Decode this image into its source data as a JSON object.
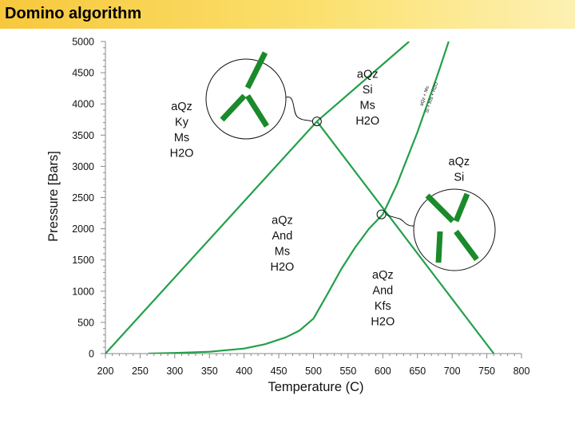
{
  "header": {
    "title": "Domino algorithm"
  },
  "chart_data": {
    "type": "line",
    "xlabel": "Temperature (C)",
    "ylabel": "Pressure [Bars]",
    "xlim": [
      200,
      800
    ],
    "ylim": [
      0,
      5000
    ],
    "xticks": [
      200,
      250,
      300,
      350,
      400,
      450,
      500,
      550,
      600,
      650,
      700,
      750,
      800
    ],
    "yticks": [
      0,
      500,
      1000,
      1500,
      2000,
      2500,
      3000,
      3500,
      4000,
      4500,
      5000
    ],
    "grid": false,
    "colors": {
      "line": "#22a04a",
      "domino": "#1a8a2a",
      "circle": "#000000"
    },
    "series": [
      {
        "points": [
          [
            200,
            0
          ],
          [
            505,
            3720
          ],
          [
            638,
            5000
          ]
        ]
      },
      {
        "points": [
          [
            505,
            3720
          ],
          [
            760,
            0
          ]
        ]
      },
      {
        "points": [
          [
            262,
            0
          ],
          [
            300,
            10
          ],
          [
            350,
            30
          ],
          [
            400,
            80
          ],
          [
            430,
            150
          ],
          [
            460,
            260
          ],
          [
            480,
            370
          ],
          [
            500,
            560
          ],
          [
            520,
            950
          ],
          [
            540,
            1350
          ],
          [
            560,
            1700
          ],
          [
            580,
            2000
          ],
          [
            600,
            2230
          ],
          [
            620,
            2700
          ],
          [
            650,
            3550
          ],
          [
            680,
            4500
          ],
          [
            695,
            5000
          ]
        ]
      }
    ],
    "invariant_points": [
      {
        "x": 505,
        "y": 3720
      },
      {
        "x": 598,
        "y": 2230
      }
    ],
    "field_labels": [
      {
        "lines": [
          "aQz",
          "Ky",
          "Ms",
          "H2O"
        ],
        "x": 310,
        "y": 3900
      },
      {
        "lines": [
          "aQz",
          "Si",
          "Ms",
          "H2O"
        ],
        "x": 578,
        "y": 4420
      },
      {
        "lines": [
          "aQz",
          "Si"
        ],
        "x": 710,
        "y": 3020
      },
      {
        "lines": [
          "aQz",
          "And",
          "Ms",
          "H2O"
        ],
        "x": 455,
        "y": 2080
      },
      {
        "lines": [
          "aQz",
          "And",
          "Kfs",
          "H2O"
        ],
        "x": 600,
        "y": 1200
      }
    ],
    "reaction_labels": [
      {
        "lines": [
          "aQz + Ms",
          "Si + Kfs + H2O"
        ],
        "x": 662,
        "y": 4120,
        "angle": -72
      }
    ]
  }
}
